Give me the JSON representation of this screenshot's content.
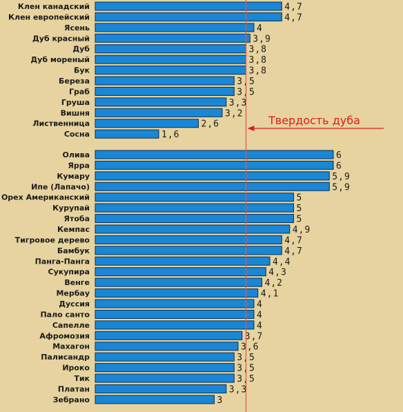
{
  "chart_data": {
    "type": "bar",
    "orientation": "horizontal",
    "grid": false,
    "groups": [
      {
        "categories": [
          "Клен канадский",
          "Клен европейский",
          "Ясень",
          "Дуб красный",
          "Дуб",
          "Дуб мореный",
          "Бук",
          "Береза",
          "Граб",
          "Груша",
          "Вишня",
          "Лиственница",
          "Сосна"
        ],
        "values": [
          4.7,
          4.7,
          4,
          3.9,
          3.8,
          3.8,
          3.8,
          3.5,
          3.5,
          3.3,
          3.2,
          2.6,
          1.6
        ],
        "labels": [
          "4,7",
          "4,7",
          "4",
          "3,9",
          "3,8",
          "3,8",
          "3,8",
          "3,5",
          "3,5",
          "3,3",
          "3,2",
          "2,6",
          "1,6"
        ]
      },
      {
        "categories": [
          "Олива",
          "Ярра",
          "Кумару",
          "Ипе (Лапачо)",
          "Орех Американский",
          "Курупай",
          "Ятоба",
          "Кемпас",
          "Тигровое дерево",
          "Бамбук",
          "Панга-Панга",
          "Сукупира",
          "Венге",
          "Мербау",
          "Дуссия",
          "Пало санто",
          "Сапелле",
          "Афромозия",
          "Махагон",
          "Палисандр",
          "Ироко",
          "Тик",
          "Платан",
          "Зебрано"
        ],
        "values": [
          6,
          6,
          5.9,
          5.9,
          5,
          5,
          5,
          4.9,
          4.7,
          4.7,
          4.4,
          4.3,
          4.2,
          4.1,
          4,
          4,
          4,
          3.7,
          3.6,
          3.5,
          3.5,
          3.5,
          3.3,
          3
        ],
        "labels": [
          "6",
          "6",
          "5,9",
          "5,9",
          "5",
          "5",
          "5",
          "4,9",
          "4,7",
          "4,7",
          "4,4",
          "4,3",
          "4,2",
          "4,1",
          "4",
          "4",
          "4",
          "3,7",
          "3,6",
          "3,5",
          "3,5",
          "3,5",
          "3,3",
          "3"
        ]
      }
    ],
    "reference_line": {
      "value": 3.8
    },
    "annotation": {
      "text": "Твердость дуба"
    },
    "colors": {
      "bar": "#1a86d6",
      "bar_edge": "#0b2f52",
      "background": "#e6d39f",
      "reference_line": "#e25555",
      "annotation": "#e01b1b"
    }
  }
}
